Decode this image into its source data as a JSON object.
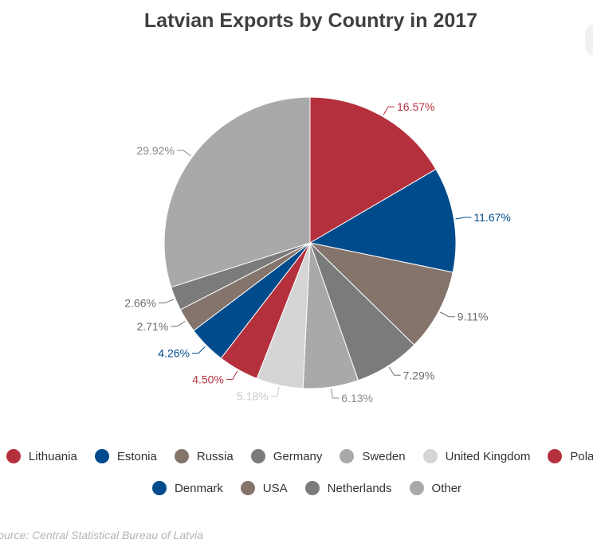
{
  "chart_data": {
    "type": "pie",
    "title": "Latvian Exports by Country in 2017",
    "slices": [
      {
        "name": "Lithuania",
        "value": 16.57,
        "label": "16.57%",
        "color": "#b5303d",
        "label_color": "#b5303d"
      },
      {
        "name": "Estonia",
        "value": 11.67,
        "label": "11.67%",
        "color": "#004b8c",
        "label_color": "#004b8c"
      },
      {
        "name": "Russia",
        "value": 9.11,
        "label": "9.11%",
        "color": "#85746b",
        "label_color": "#6d6d6d"
      },
      {
        "name": "Germany",
        "value": 7.29,
        "label": "7.29%",
        "color": "#7b7b7b",
        "label_color": "#6d6d6d"
      },
      {
        "name": "Sweden",
        "value": 6.13,
        "label": "6.13%",
        "color": "#a9a9a9",
        "label_color": "#8a8a8a"
      },
      {
        "name": "United Kingdom",
        "value": 5.18,
        "label": "5.18%",
        "color": "#d5d5d5",
        "label_color": "#c8c8c8"
      },
      {
        "name": "Poland",
        "value": 4.5,
        "label": "4.50%",
        "color": "#b5303d",
        "label_color": "#b5303d"
      },
      {
        "name": "Denmark",
        "value": 4.26,
        "label": "4.26%",
        "color": "#004b8c",
        "label_color": "#004b8c"
      },
      {
        "name": "USA",
        "value": 2.71,
        "label": "2.71%",
        "color": "#85746b",
        "label_color": "#6d6d6d"
      },
      {
        "name": "Netherlands",
        "value": 2.66,
        "label": "2.66%",
        "color": "#7b7b7b",
        "label_color": "#6d6d6d"
      },
      {
        "name": "Other",
        "value": 29.92,
        "label": "29.92%",
        "color": "#a9a9a9",
        "label_color": "#8a8a8a"
      }
    ],
    "legend_position": "bottom",
    "source": "Source: Central Statistical Bureau of Latvia"
  }
}
